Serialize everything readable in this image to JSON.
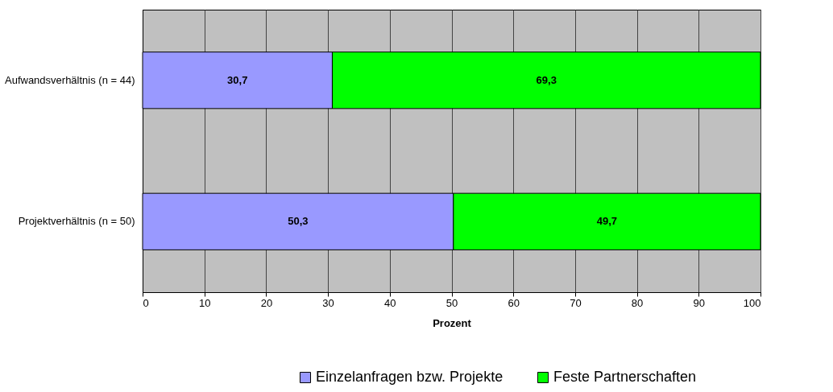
{
  "chart_data": {
    "type": "bar",
    "orientation": "horizontal",
    "stacked": true,
    "categories": [
      "Aufwandsverhältnis (n = 44)",
      "Projektverhältnis (n = 50)"
    ],
    "series": [
      {
        "name": "Einzelanfragen bzw. Projekte",
        "color": "#9999ff",
        "values": [
          30.7,
          50.3
        ],
        "value_labels": [
          "30,7",
          "50,3"
        ]
      },
      {
        "name": "Feste Partnerschaften",
        "color": "#00ff00",
        "values": [
          69.3,
          49.7
        ],
        "value_labels": [
          "69,3",
          "49,7"
        ]
      }
    ],
    "xlabel": "Prozent",
    "xlim": [
      0,
      100
    ],
    "xticks": [
      0,
      10,
      20,
      30,
      40,
      50,
      60,
      70,
      80,
      90,
      100
    ],
    "grid": "x",
    "legend": "bottom"
  }
}
